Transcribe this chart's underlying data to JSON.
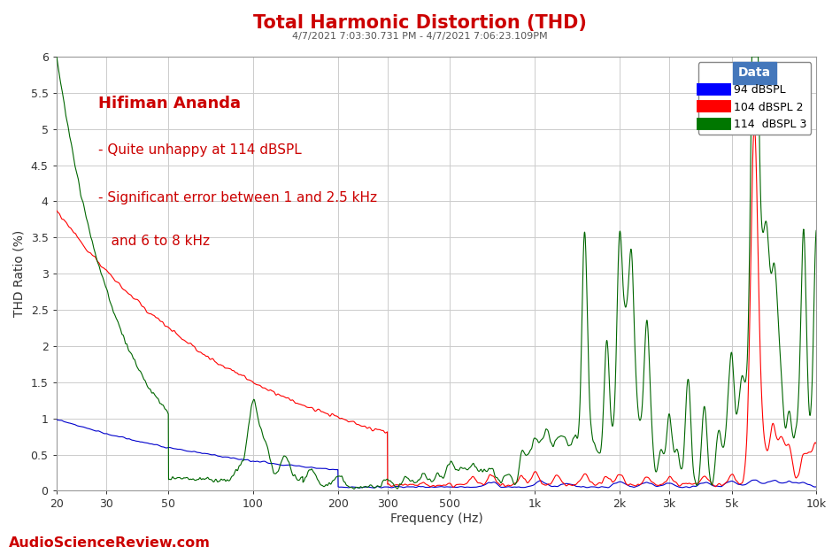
{
  "title": "Total Harmonic Distortion (THD)",
  "subtitle": "4/7/2021 7:03:30.731 PM - 4/7/2021 7:06:23.109PM",
  "xlabel": "Frequency (Hz)",
  "ylabel": "THD Ratio (%)",
  "title_color": "#cc0000",
  "subtitle_color": "#555555",
  "annotation_color": "#cc0000",
  "annotation_lines": [
    "Hifiman Ananda",
    "- Quite unhappy at 114 dBSPL",
    "- Significant error between 1 and 2.5 kHz",
    "   and 6 to 8 kHz"
  ],
  "xlim": [
    20,
    10000
  ],
  "ylim": [
    0,
    6.0
  ],
  "yticks": [
    0,
    0.5,
    1.0,
    1.5,
    2.0,
    2.5,
    3.0,
    3.5,
    4.0,
    4.5,
    5.0,
    5.5,
    6.0
  ],
  "xtick_labels": [
    "20",
    "30",
    "50",
    "100",
    "200",
    "300",
    "500",
    "1k",
    "2k",
    "3k",
    "5k",
    "10k"
  ],
  "xtick_values": [
    20,
    30,
    50,
    100,
    200,
    300,
    500,
    1000,
    2000,
    3000,
    5000,
    10000
  ],
  "legend_title": "Data",
  "legend_items": [
    "94 dBSPL",
    "104 dBSPL 2",
    "114  dBSPL 3"
  ],
  "legend_colors": [
    "#0000ff",
    "#ff0000",
    "#007700"
  ],
  "line_colors": [
    "#0000cc",
    "#ff0000",
    "#006600"
  ],
  "watermark": "AudioScienceReview.com",
  "watermark_color": "#cc0000",
  "background_color": "#ffffff",
  "grid_color": "#cccccc",
  "figsize": [
    9.49,
    6.27
  ],
  "dpi": 100
}
